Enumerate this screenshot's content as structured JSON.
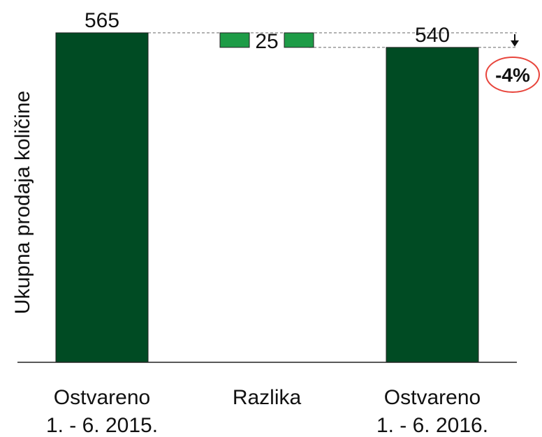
{
  "chart_data": {
    "type": "bar",
    "subtype": "waterfall",
    "ylabel": "Ukupna prodaja količine",
    "categories": [
      [
        "Ostvareno",
        "1. - 6. 2015."
      ],
      [
        "Razlika"
      ],
      [
        "Ostvareno",
        "1. - 6. 2016."
      ]
    ],
    "values": [
      565,
      -25,
      540
    ],
    "data_labels": [
      "565",
      "25",
      "540"
    ],
    "change_label": "-4%",
    "colors": {
      "total": "#004b23",
      "difference": "#1e9c47",
      "badge": "#e8453c"
    },
    "grid": false
  }
}
